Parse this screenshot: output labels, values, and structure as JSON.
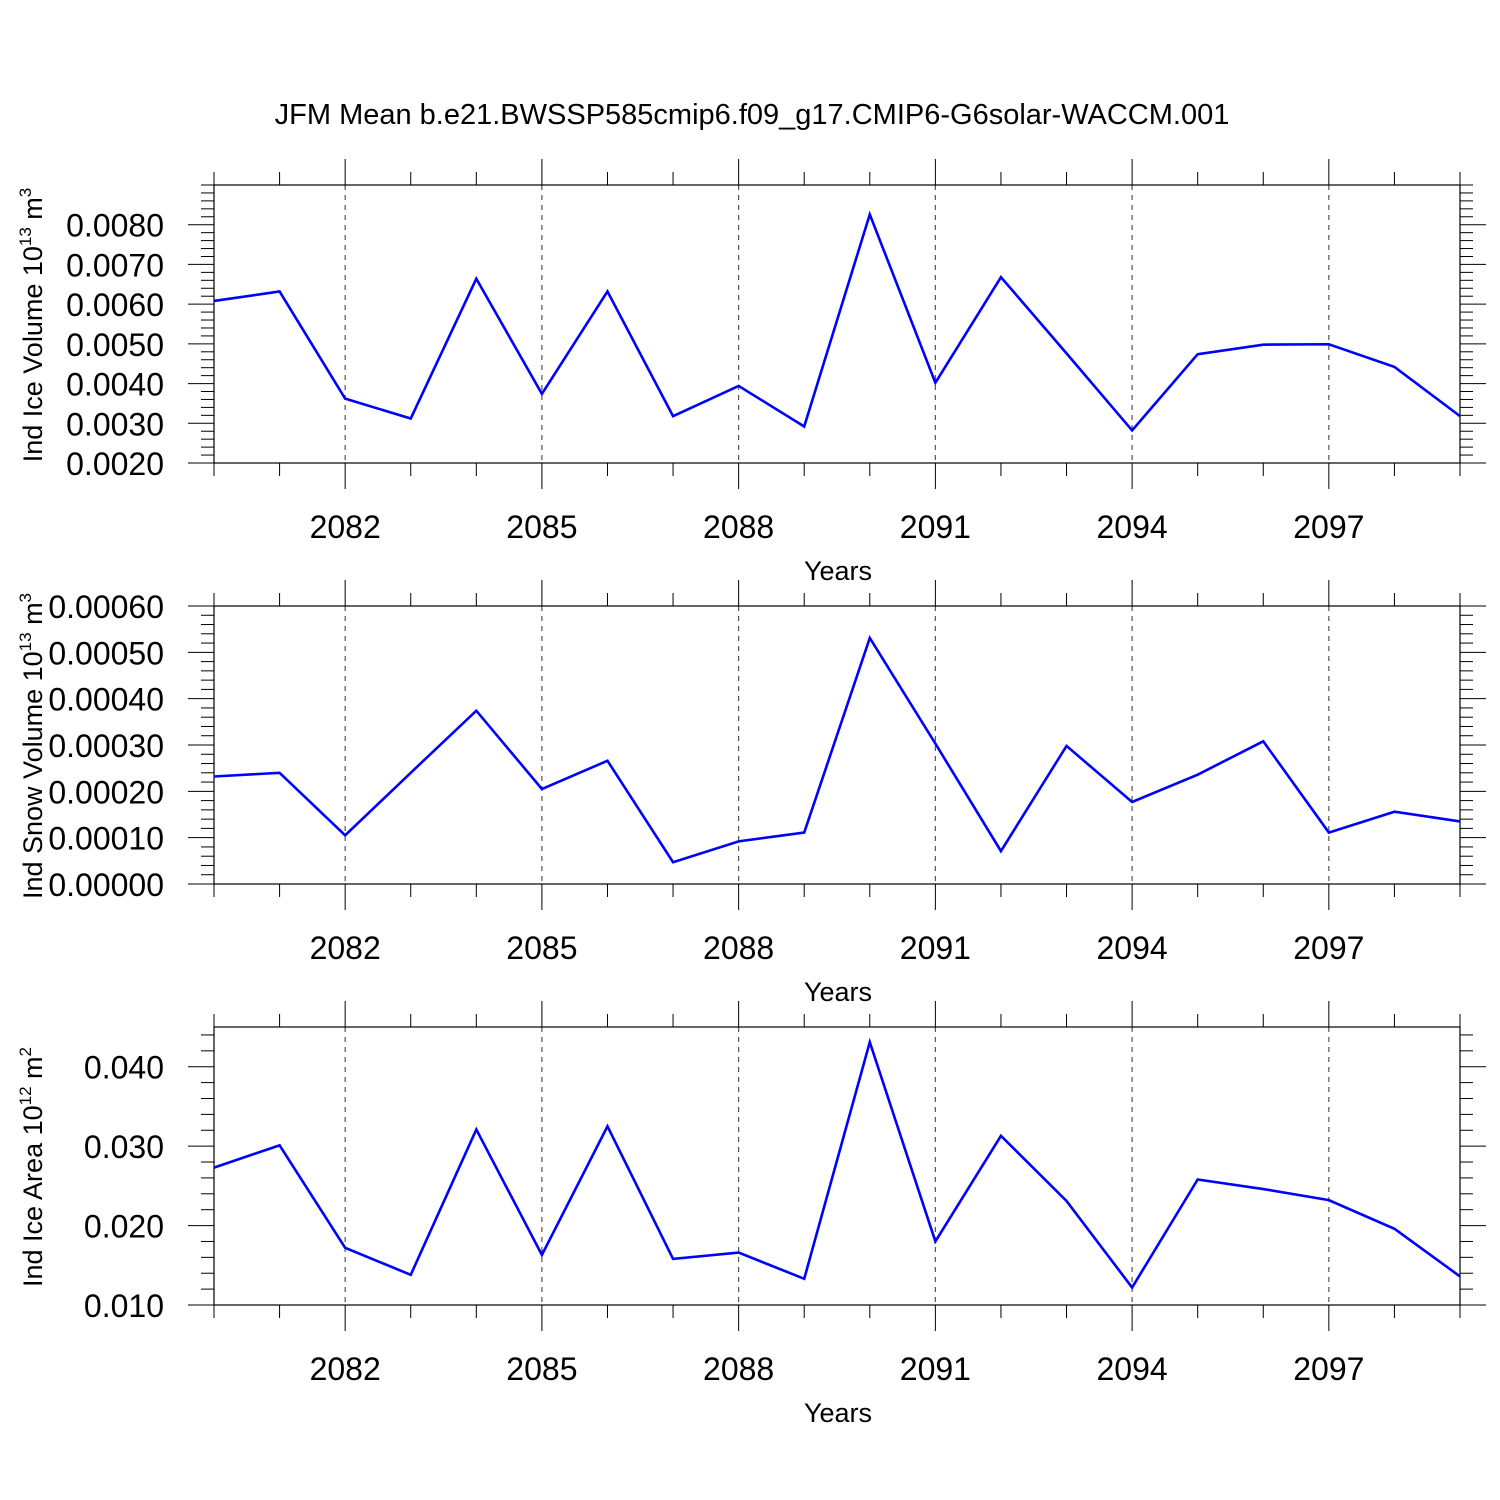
{
  "title": "JFM Mean b.e21.BWSSP585cmip6.f09_g17.CMIP6-G6solar-WACCM.001",
  "colors": {
    "line": "#0000ff",
    "axis": "#000000",
    "grid": "#555555"
  },
  "chart_data": [
    {
      "type": "line",
      "ylabel": "Ind Ice Volume 10",
      "ylabel_sup": "13",
      "ylabel_unit": " m",
      "ylabel_unit_sup": "3",
      "xlabel": "Years",
      "xlim": [
        2080,
        2099
      ],
      "ylim": [
        0.002,
        0.009
      ],
      "yticks": [
        0.002,
        0.003,
        0.004,
        0.005,
        0.006,
        0.007,
        0.008
      ],
      "yticklabels": [
        "0.0020",
        "0.0030",
        "0.0040",
        "0.0050",
        "0.0060",
        "0.0070",
        "0.0080"
      ],
      "yminor_step": 0.0002,
      "xticks": [
        2082,
        2085,
        2088,
        2091,
        2094,
        2097
      ],
      "xticklabels": [
        "2082",
        "2085",
        "2088",
        "2091",
        "2094",
        "2097"
      ],
      "grid_x": true,
      "x": [
        2080,
        2081,
        2082,
        2083,
        2084,
        2085,
        2086,
        2087,
        2088,
        2089,
        2090,
        2091,
        2092,
        2093,
        2094,
        2095,
        2096,
        2097,
        2098,
        2099
      ],
      "series": [
        {
          "values": [
            0.00608,
            0.00632,
            0.00362,
            0.00312,
            0.00664,
            0.00374,
            0.00632,
            0.00318,
            0.00394,
            0.00292,
            0.00826,
            0.00402,
            0.00668,
            0.00476,
            0.00282,
            0.00474,
            0.00498,
            0.00499,
            0.00442,
            0.00318
          ]
        }
      ]
    },
    {
      "type": "line",
      "ylabel": "Ind Snow Volume 10",
      "ylabel_sup": "13",
      "ylabel_unit": " m",
      "ylabel_unit_sup": "3",
      "xlabel": "Years",
      "xlim": [
        2080,
        2099
      ],
      "ylim": [
        0.0,
        0.0006
      ],
      "yticks": [
        0.0,
        0.0001,
        0.0002,
        0.0003,
        0.0004,
        0.0005,
        0.0006
      ],
      "yticklabels": [
        "0.00000",
        "0.00010",
        "0.00020",
        "0.00030",
        "0.00040",
        "0.00050",
        "0.00060"
      ],
      "yminor_step": 2e-05,
      "xticks": [
        2082,
        2085,
        2088,
        2091,
        2094,
        2097
      ],
      "xticklabels": [
        "2082",
        "2085",
        "2088",
        "2091",
        "2094",
        "2097"
      ],
      "grid_x": true,
      "x": [
        2080,
        2081,
        2082,
        2083,
        2084,
        2085,
        2086,
        2087,
        2088,
        2089,
        2090,
        2091,
        2092,
        2093,
        2094,
        2095,
        2096,
        2097,
        2098,
        2099
      ],
      "series": [
        {
          "values": [
            0.000232,
            0.00024,
            0.000105,
            0.00024,
            0.000374,
            0.000205,
            0.000266,
            4.7e-05,
            9.2e-05,
            0.000111,
            0.000531,
            0.000303,
            7.1e-05,
            0.000298,
            0.000177,
            0.000236,
            0.000308,
            0.000111,
            0.000156,
            0.000135
          ]
        }
      ]
    },
    {
      "type": "line",
      "ylabel": "Ind Ice Area 10",
      "ylabel_sup": "12",
      "ylabel_unit": " m",
      "ylabel_unit_sup": "2",
      "xlabel": "Years",
      "xlim": [
        2080,
        2099
      ],
      "ylim": [
        0.01,
        0.045
      ],
      "yticks": [
        0.01,
        0.02,
        0.03,
        0.04
      ],
      "yticklabels": [
        "0.010",
        "0.020",
        "0.030",
        "0.040"
      ],
      "yminor_step": 0.002,
      "xticks": [
        2082,
        2085,
        2088,
        2091,
        2094,
        2097
      ],
      "xticklabels": [
        "2082",
        "2085",
        "2088",
        "2091",
        "2094",
        "2097"
      ],
      "grid_x": true,
      "x": [
        2080,
        2081,
        2082,
        2083,
        2084,
        2085,
        2086,
        2087,
        2088,
        2089,
        2090,
        2091,
        2092,
        2093,
        2094,
        2095,
        2096,
        2097,
        2098,
        2099
      ],
      "series": [
        {
          "values": [
            0.0273,
            0.0301,
            0.0172,
            0.0138,
            0.0321,
            0.0163,
            0.0325,
            0.0158,
            0.0166,
            0.0133,
            0.0431,
            0.018,
            0.0313,
            0.0231,
            0.0122,
            0.0258,
            0.0246,
            0.0232,
            0.0196,
            0.0136
          ]
        }
      ]
    }
  ]
}
